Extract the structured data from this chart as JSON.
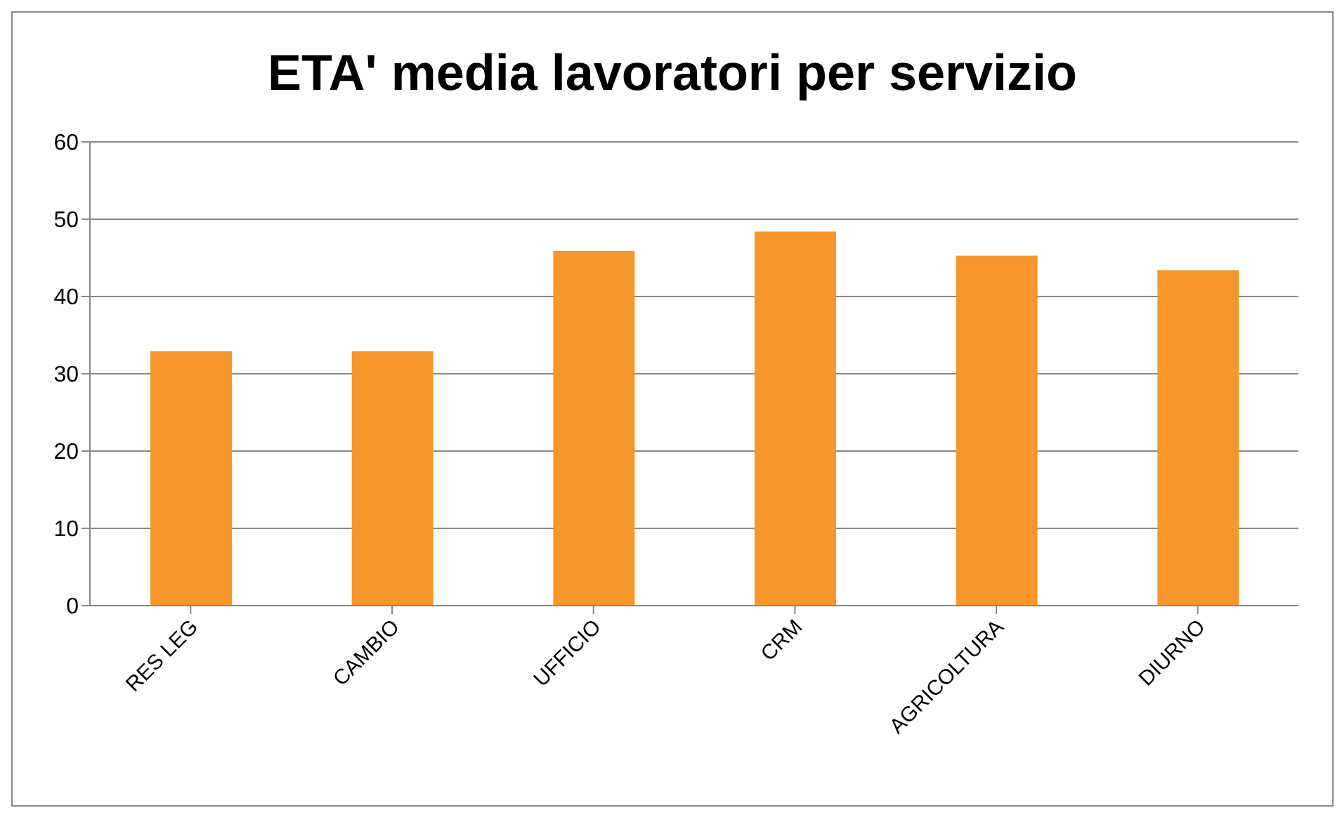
{
  "chart_data": {
    "type": "bar",
    "title": "ETA' media lavoratori  per servizio",
    "categories": [
      "RES LEG",
      "CAMBIO",
      "UFFICIO",
      "CRM",
      "AGRICOLTURA",
      "DIURNO"
    ],
    "values": [
      32.9,
      32.9,
      45.9,
      48.4,
      45.3,
      43.4
    ],
    "color": "#f7962a",
    "ylim": [
      0,
      60
    ],
    "yticks": [
      0,
      10,
      20,
      30,
      40,
      50,
      60
    ],
    "grid": "y"
  }
}
